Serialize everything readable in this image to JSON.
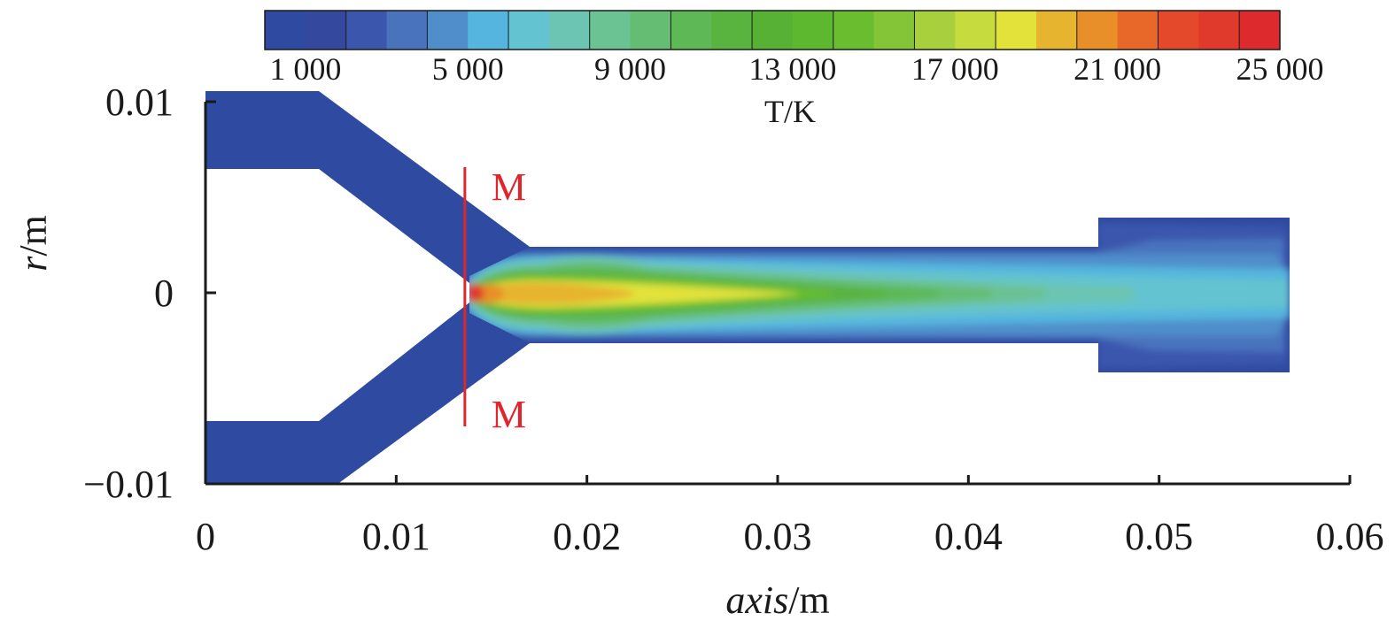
{
  "chart_data": {
    "type": "heatmap",
    "description_of_field": "axisymmetric temperature contour",
    "xlabel": {
      "italic": "axis",
      "unit": "/m"
    },
    "ylabel": {
      "italic": "r",
      "unit": "/m"
    },
    "xlim": [
      0,
      0.06
    ],
    "ylim": [
      -0.01,
      0.01
    ],
    "x_ticks": [
      "0",
      "0.01",
      "0.02",
      "0.03",
      "0.04",
      "0.05",
      "0.06"
    ],
    "y_ticks": [
      "0.01",
      "0",
      "−0.01"
    ],
    "y_tick_values": [
      0.01,
      0,
      -0.01
    ],
    "colorbar": {
      "label": {
        "italic": "T",
        "unit": "/K"
      },
      "min": 0,
      "max": 25000,
      "ticks": [
        "1 000",
        "5 000",
        "9 000",
        "13 000",
        "17 000",
        "21 000",
        "25 000"
      ],
      "tick_values": [
        1000,
        5000,
        9000,
        13000,
        17000,
        21000,
        25000
      ],
      "levels": [
        0,
        1000,
        2000,
        3000,
        4000,
        5000,
        6000,
        7000,
        8000,
        9000,
        10000,
        11000,
        12000,
        13000,
        14000,
        15000,
        16000,
        17000,
        18000,
        19000,
        20000,
        21000,
        22000,
        23000,
        24000,
        25000
      ],
      "colors": [
        "#2f4aa1",
        "#34499e",
        "#3a57ad",
        "#4a73bd",
        "#4f8ecb",
        "#55b5de",
        "#64c3d0",
        "#6cc4b2",
        "#6bc293",
        "#65bd74",
        "#5db855",
        "#59b33f",
        "#57b134",
        "#5db830",
        "#6abd2f",
        "#84c437",
        "#a8cf3c",
        "#c6dc3e",
        "#e2e23a",
        "#e6b42e",
        "#e98f2a",
        "#e86829",
        "#e4492b",
        "#e03a2c",
        "#dd2a2d"
      ]
    },
    "annotations": [
      {
        "text": "M",
        "x": 0.0136,
        "y": 0.0057
      },
      {
        "text": "M",
        "x": 0.0136,
        "y": -0.0062
      }
    ],
    "cut_line_x": 0.0136,
    "domain_geometry_note": "annular inlet channel converging to nozzle, straight channel, widened outlet section"
  }
}
